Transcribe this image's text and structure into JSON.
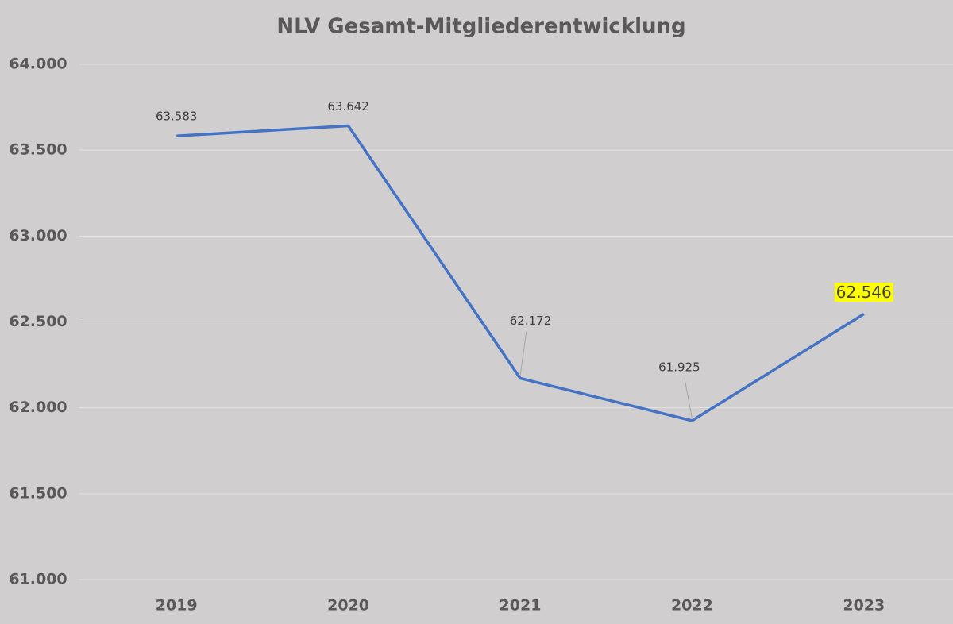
{
  "chart_data": {
    "type": "line",
    "title": "NLV Gesamt-Mitgliederentwicklung",
    "categories": [
      "2019",
      "2020",
      "2021",
      "2022",
      "2023"
    ],
    "values": [
      63583,
      63642,
      62172,
      61925,
      62546
    ],
    "value_labels": [
      "63.583",
      "63.642",
      "62.172",
      "61.925",
      "62.546"
    ],
    "color": "#4472c4",
    "highlight": {
      "index": 4,
      "color": "#ffff00"
    },
    "ylim": [
      61000,
      64000
    ],
    "yticks": [
      {
        "value": 61000,
        "label": "61.000"
      },
      {
        "value": 61500,
        "label": "61.500"
      },
      {
        "value": 62000,
        "label": "62.000"
      },
      {
        "value": 62500,
        "label": "62.500"
      },
      {
        "value": 63000,
        "label": "63.000"
      },
      {
        "value": 63500,
        "label": "63.500"
      },
      {
        "value": 64000,
        "label": "64.000"
      }
    ],
    "grid": true
  }
}
